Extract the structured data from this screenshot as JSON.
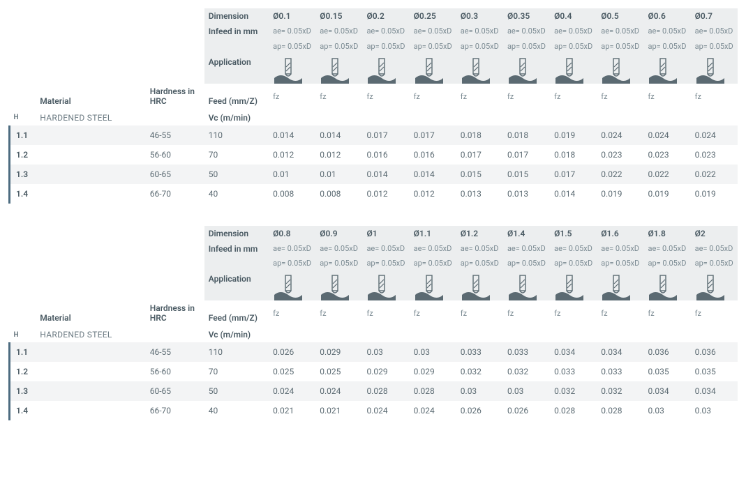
{
  "colors": {
    "text_muted": "#7a8a92",
    "text_strong": "#4a5a63",
    "header_bg": "#eceeef",
    "stripe_a": "#f3f4f5",
    "stripe_b": "#ffffff",
    "index_accent": "#4d6c80",
    "icon_fill": "#5b6a72"
  },
  "labels": {
    "dimension": "Dimension",
    "infeed": "Infeed in mm",
    "application": "Application",
    "material": "Material",
    "hardness": "Hardness in HRC",
    "feed": "Feed (mm/Z)",
    "vc": "Vc (m/min)",
    "ae": "ae= 0.05xD",
    "ap": "ap= 0.05xD",
    "fz": "fz"
  },
  "material_group": {
    "code": "H",
    "name": "HARDENED STEEL"
  },
  "tables": [
    {
      "diameters": [
        "Ø0.1",
        "Ø0.15",
        "Ø0.2",
        "Ø0.25",
        "Ø0.3",
        "Ø0.35",
        "Ø0.4",
        "Ø0.5",
        "Ø0.6",
        "Ø0.7"
      ],
      "rows": [
        {
          "idx": "1.1",
          "hardness": "46-55",
          "vc": "110",
          "fz": [
            "0.014",
            "0.014",
            "0.017",
            "0.017",
            "0.018",
            "0.018",
            "0.019",
            "0.024",
            "0.024",
            "0.024"
          ]
        },
        {
          "idx": "1.2",
          "hardness": "56-60",
          "vc": "70",
          "fz": [
            "0.012",
            "0.012",
            "0.016",
            "0.016",
            "0.017",
            "0.017",
            "0.018",
            "0.023",
            "0.023",
            "0.023"
          ]
        },
        {
          "idx": "1.3",
          "hardness": "60-65",
          "vc": "50",
          "fz": [
            "0.01",
            "0.01",
            "0.014",
            "0.014",
            "0.015",
            "0.015",
            "0.017",
            "0.022",
            "0.022",
            "0.022"
          ]
        },
        {
          "idx": "1.4",
          "hardness": "66-70",
          "vc": "40",
          "fz": [
            "0.008",
            "0.008",
            "0.012",
            "0.012",
            "0.013",
            "0.013",
            "0.014",
            "0.019",
            "0.019",
            "0.019"
          ]
        }
      ]
    },
    {
      "diameters": [
        "Ø0.8",
        "Ø0.9",
        "Ø1",
        "Ø1.1",
        "Ø1.2",
        "Ø1.4",
        "Ø1.5",
        "Ø1.6",
        "Ø1.8",
        "Ø2"
      ],
      "rows": [
        {
          "idx": "1.1",
          "hardness": "46-55",
          "vc": "110",
          "fz": [
            "0.026",
            "0.029",
            "0.03",
            "0.03",
            "0.033",
            "0.033",
            "0.034",
            "0.034",
            "0.036",
            "0.036"
          ]
        },
        {
          "idx": "1.2",
          "hardness": "56-60",
          "vc": "70",
          "fz": [
            "0.025",
            "0.025",
            "0.029",
            "0.029",
            "0.032",
            "0.032",
            "0.033",
            "0.033",
            "0.035",
            "0.035"
          ]
        },
        {
          "idx": "1.3",
          "hardness": "60-65",
          "vc": "50",
          "fz": [
            "0.024",
            "0.024",
            "0.028",
            "0.028",
            "0.03",
            "0.03",
            "0.032",
            "0.032",
            "0.034",
            "0.034"
          ]
        },
        {
          "idx": "1.4",
          "hardness": "66-70",
          "vc": "40",
          "fz": [
            "0.021",
            "0.021",
            "0.024",
            "0.024",
            "0.026",
            "0.026",
            "0.028",
            "0.028",
            "0.03",
            "0.03"
          ]
        }
      ]
    }
  ]
}
